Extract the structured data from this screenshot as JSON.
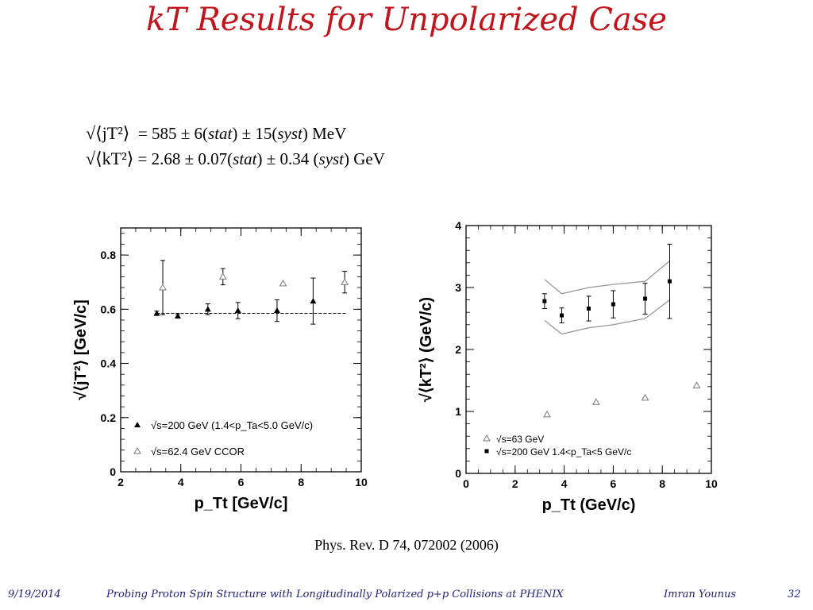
{
  "slide": {
    "title": "kT Results for Unpolarized Case",
    "formula_jt": {
      "lhs": "√⟨jT²⟩",
      "rhs_prefix": "= 585 ± 6(",
      "stat": "stat",
      "mid": ") ± 15(",
      "syst": "syst",
      "unit": ")  MeV"
    },
    "formula_kt": {
      "lhs": "√⟨kT²⟩",
      "rhs_prefix": "= 2.68 ± 0.07(",
      "stat": "stat",
      "mid": ") ± 0.34 (",
      "syst": "syst",
      "unit": ")  GeV"
    },
    "reference": "Phys. Rev. D 74, 072002 (2006)",
    "footer": {
      "date": "9/19/2014",
      "talk": "Probing Proton Spin Structure with Longitudinally Polarized p+p Collisions at PHENIX",
      "author": "Imran Younus",
      "page": "32"
    }
  },
  "chart_data": [
    {
      "type": "scatter",
      "xlabel": "p_Tt  [GeV/c]",
      "ylabel": "√⟨jT²⟩  [GeV/c]",
      "xlim": [
        2,
        10
      ],
      "ylim": [
        0,
        0.9
      ],
      "xticks": [
        2,
        4,
        6,
        8,
        10
      ],
      "yticks": [
        0,
        0.2,
        0.4,
        0.6,
        0.8
      ],
      "ytick_labels": [
        "0",
        "0.2",
        "0.4",
        "0.6",
        "0.8"
      ],
      "reference_line": {
        "y": 0.585,
        "x_range": [
          3.2,
          9.5
        ],
        "style": "dashed"
      },
      "legend_placement": "bottom-left",
      "series": [
        {
          "name": "√s=200 GeV (1.4<p_Ta<5.0 GeV/c)",
          "marker": "filled-triangle",
          "points": [
            {
              "x": 3.2,
              "y": 0.585,
              "err": 0.008
            },
            {
              "x": 3.9,
              "y": 0.575,
              "err": 0.008
            },
            {
              "x": 4.9,
              "y": 0.6,
              "err": 0.02
            },
            {
              "x": 5.9,
              "y": 0.595,
              "err": 0.03
            },
            {
              "x": 7.2,
              "y": 0.595,
              "err": 0.04
            },
            {
              "x": 8.4,
              "y": 0.63,
              "err": 0.085
            }
          ]
        },
        {
          "name": "√s=62.4 GeV CCOR",
          "marker": "open-triangle",
          "points": [
            {
              "x": 3.4,
              "y": 0.68,
              "err": 0.1
            },
            {
              "x": 5.4,
              "y": 0.72,
              "err": 0.03
            },
            {
              "x": 7.4,
              "y": 0.695,
              "err": 0
            },
            {
              "x": 9.45,
              "y": 0.7,
              "err": 0.04
            }
          ]
        }
      ]
    },
    {
      "type": "scatter",
      "xlabel": "p_Tt  (GeV/c)",
      "ylabel": "√⟨kT²⟩  (GeV/c)",
      "xlim": [
        0,
        10
      ],
      "ylim": [
        0,
        4
      ],
      "xticks": [
        0,
        2,
        4,
        6,
        8,
        10
      ],
      "yticks": [
        0,
        1,
        2,
        3,
        4
      ],
      "ytick_labels": [
        "0",
        "1",
        "2",
        "3",
        "4"
      ],
      "legend_placement": "bottom-left",
      "band": {
        "x": [
          3.2,
          3.9,
          5,
          6,
          7.3,
          8.3
        ],
        "upper": [
          3.13,
          2.9,
          3.0,
          3.05,
          3.1,
          3.43
        ],
        "lower": [
          2.47,
          2.25,
          2.35,
          2.4,
          2.5,
          2.8
        ]
      },
      "series": [
        {
          "name": "√s=63 GeV",
          "marker": "open-triangle",
          "points": [
            {
              "x": 3.3,
              "y": 0.95,
              "err": 0
            },
            {
              "x": 5.3,
              "y": 1.15,
              "err": 0
            },
            {
              "x": 7.3,
              "y": 1.22,
              "err": 0
            },
            {
              "x": 9.4,
              "y": 1.42,
              "err": 0
            }
          ]
        },
        {
          "name": "√s=200 GeV 1.4<p_Ta<5 GeV/c",
          "marker": "filled-square",
          "points": [
            {
              "x": 3.2,
              "y": 2.78,
              "err": 0.12
            },
            {
              "x": 3.9,
              "y": 2.55,
              "err": 0.12
            },
            {
              "x": 5.0,
              "y": 2.66,
              "err": 0.2
            },
            {
              "x": 6.0,
              "y": 2.73,
              "err": 0.22
            },
            {
              "x": 7.3,
              "y": 2.82,
              "err": 0.25
            },
            {
              "x": 8.3,
              "y": 3.1,
              "err": 0.6
            }
          ]
        }
      ]
    }
  ]
}
